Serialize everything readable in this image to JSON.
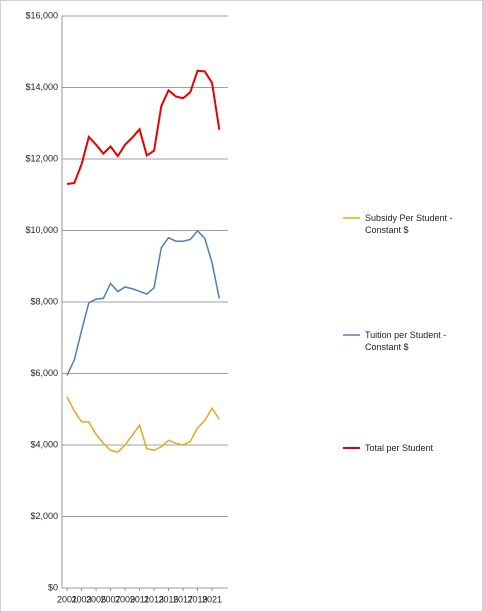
{
  "chart_data": {
    "type": "line",
    "x": [
      2001,
      2002,
      2003,
      2004,
      2005,
      2006,
      2007,
      2008,
      2009,
      2010,
      2011,
      2012,
      2013,
      2014,
      2015,
      2016,
      2017,
      2018,
      2019,
      2020,
      2021,
      2022
    ],
    "series": [
      {
        "name": "Subsidy Per Student - Constant $",
        "color": "#e3a81c",
        "values": [
          5350,
          4950,
          4650,
          4640,
          4300,
          4050,
          3850,
          3800,
          4000,
          4270,
          4550,
          3900,
          3850,
          3950,
          4130,
          4050,
          4000,
          4100,
          4480,
          4680,
          5030,
          4720
        ]
      },
      {
        "name": "Tuition per Student - Constant $",
        "color": "#4a80b8",
        "values": [
          5950,
          6380,
          7200,
          7980,
          8080,
          8100,
          8520,
          8290,
          8420,
          8370,
          8300,
          8220,
          8400,
          9520,
          9800,
          9700,
          9700,
          9750,
          9990,
          9780,
          9100,
          8100
        ]
      },
      {
        "name": "Total per Student",
        "color": "#e60000",
        "values": [
          11300,
          11330,
          11850,
          12620,
          12400,
          12150,
          12350,
          12080,
          12400,
          12600,
          12830,
          12100,
          12230,
          13480,
          13920,
          13750,
          13700,
          13870,
          14470,
          14450,
          14130,
          12820
        ]
      }
    ],
    "xlim": [
      2000.3,
      2023.2
    ],
    "xticks": [
      2001,
      2003,
      2005,
      2007,
      2009,
      2011,
      2013,
      2015,
      2017,
      2019,
      2021
    ],
    "ylim": [
      0,
      16000
    ],
    "yticks": [
      {
        "value": 0,
        "label": "$0"
      },
      {
        "value": 2000,
        "label": "$2,000"
      },
      {
        "value": 4000,
        "label": "$4,000"
      },
      {
        "value": 6000,
        "label": "$6,000"
      },
      {
        "value": 8000,
        "label": "$8,000"
      },
      {
        "value": 10000,
        "label": "$10,000"
      },
      {
        "value": 12000,
        "label": "$12,000"
      },
      {
        "value": 14000,
        "label": "$14,000"
      },
      {
        "value": 16000,
        "label": "$16,000"
      }
    ],
    "grid": true,
    "legend": "right"
  }
}
